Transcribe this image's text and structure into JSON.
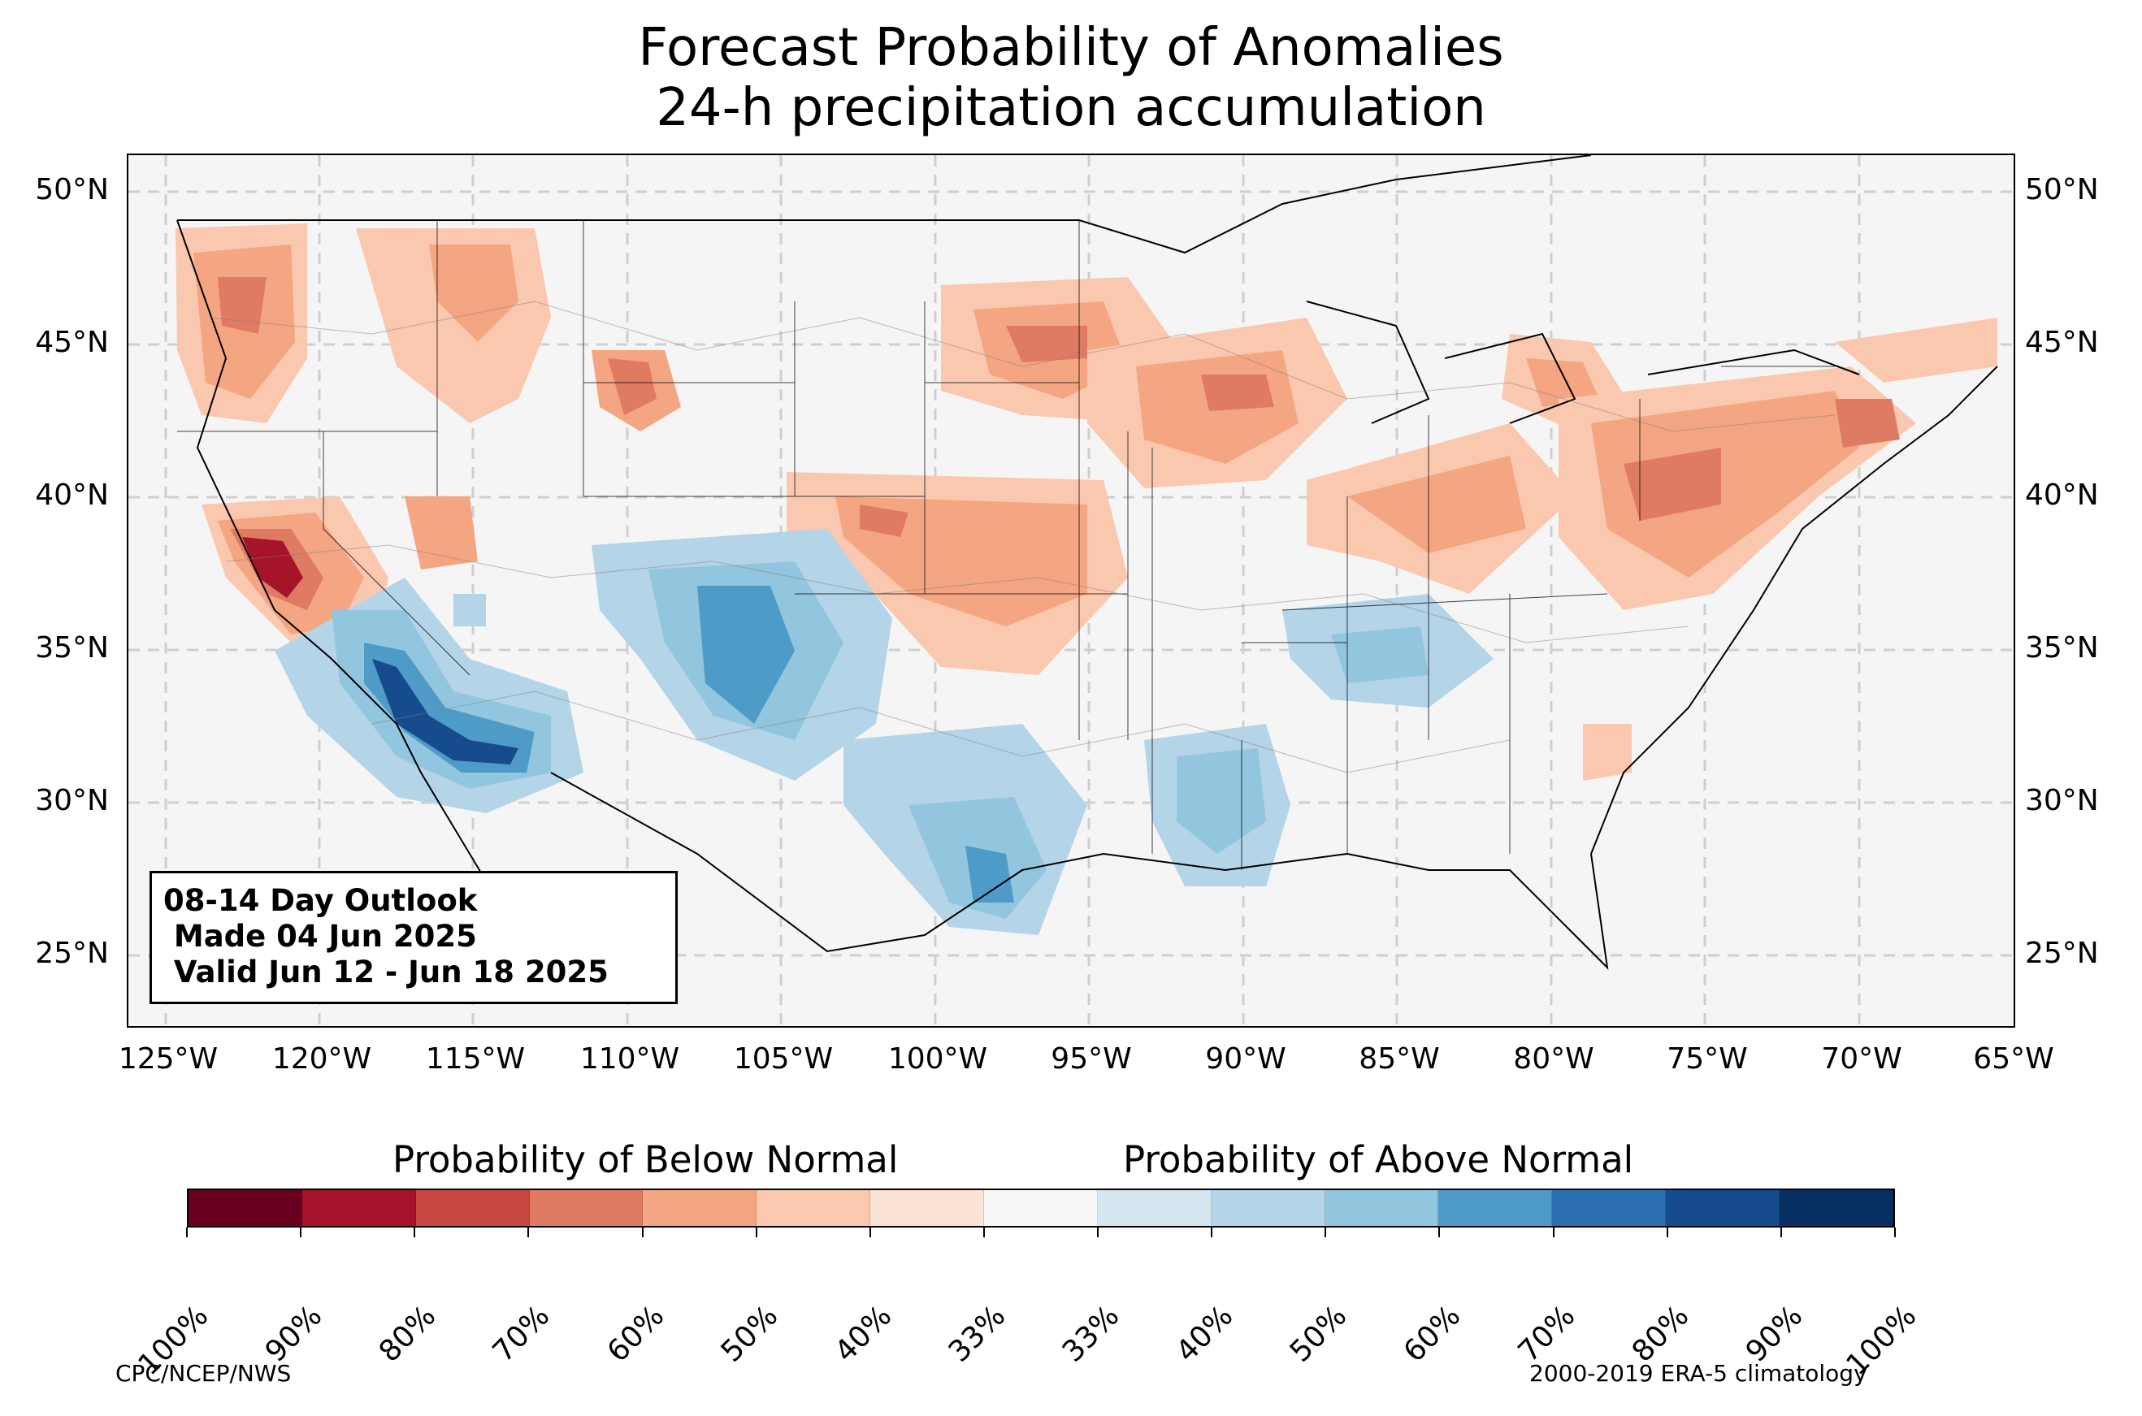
{
  "title_line1": "Forecast Probability of Anomalies",
  "title_line2": "24-h precipitation accumulation",
  "outlook": {
    "line1": "08-14 Day Outlook",
    "line2": " Made 04 Jun 2025",
    "line3": " Valid Jun 12 - Jun 18 2025"
  },
  "axes": {
    "lat_labels": [
      "50°N",
      "45°N",
      "40°N",
      "35°N",
      "30°N",
      "25°N"
    ],
    "lon_labels": [
      "125°W",
      "120°W",
      "115°W",
      "110°W",
      "105°W",
      "100°W",
      "95°W",
      "90°W",
      "85°W",
      "80°W",
      "75°W",
      "70°W",
      "65°W"
    ]
  },
  "colorbar": {
    "below_title": "Probability of Below Normal",
    "above_title": "Probability of Above Normal",
    "tick_labels": [
      "100%",
      "90%",
      "80%",
      "70%",
      "60%",
      "50%",
      "40%",
      "33%",
      "33%",
      "40%",
      "50%",
      "60%",
      "70%",
      "80%",
      "90%",
      "100%"
    ],
    "colors": [
      "#67001f",
      "#a51428",
      "#c94741",
      "#e07b63",
      "#f4a582",
      "#f9c8af",
      "#fbe3d6",
      "#f7f7f7",
      "#d6e6f1",
      "#b4d4e8",
      "#92c5de",
      "#4f9bc8",
      "#2c6fb0",
      "#164b8e",
      "#053061"
    ]
  },
  "footer": {
    "left": "CPC/NCEP/NWS",
    "right": "2000-2019 ERA-5 climatology"
  },
  "colors": {
    "land": "#f5f5f5",
    "below_light": "#f9c8af",
    "below_mid": "#f4a582",
    "below_strong": "#e07b63",
    "below_max": "#a51428",
    "above_light": "#b4d4e8",
    "above_mid": "#92c5de",
    "above_strong": "#4f9bc8",
    "above_max": "#164b8e"
  }
}
